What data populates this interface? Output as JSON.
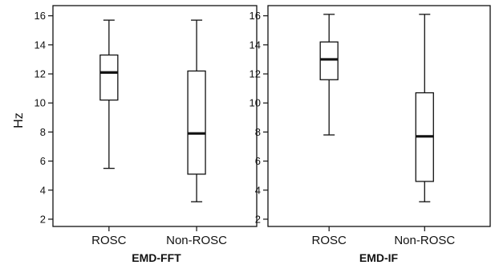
{
  "chart_data": [
    {
      "type": "boxplot",
      "title": "EMD-FFT",
      "ylabel": "Hz",
      "ylim": [
        1.5,
        16.7
      ],
      "yticks": [
        2,
        4,
        6,
        8,
        10,
        12,
        14,
        16
      ],
      "categories": [
        "ROSC",
        "Non-ROSC"
      ],
      "boxes": [
        {
          "min": 5.5,
          "q1": 10.2,
          "median": 12.1,
          "q3": 13.3,
          "max": 15.7
        },
        {
          "min": 3.2,
          "q1": 5.1,
          "median": 7.9,
          "q3": 12.2,
          "max": 15.7
        }
      ]
    },
    {
      "type": "boxplot",
      "title": "EMD-IF",
      "ylabel": "",
      "ylim": [
        1.5,
        16.7
      ],
      "yticks": [
        2,
        4,
        6,
        8,
        10,
        12,
        14,
        16
      ],
      "categories": [
        "ROSC",
        "Non-ROSC"
      ],
      "boxes": [
        {
          "min": 7.8,
          "q1": 11.6,
          "median": 13.0,
          "q3": 14.2,
          "max": 16.1
        },
        {
          "min": 3.2,
          "q1": 4.6,
          "median": 7.7,
          "q3": 10.7,
          "max": 16.1
        }
      ]
    }
  ]
}
